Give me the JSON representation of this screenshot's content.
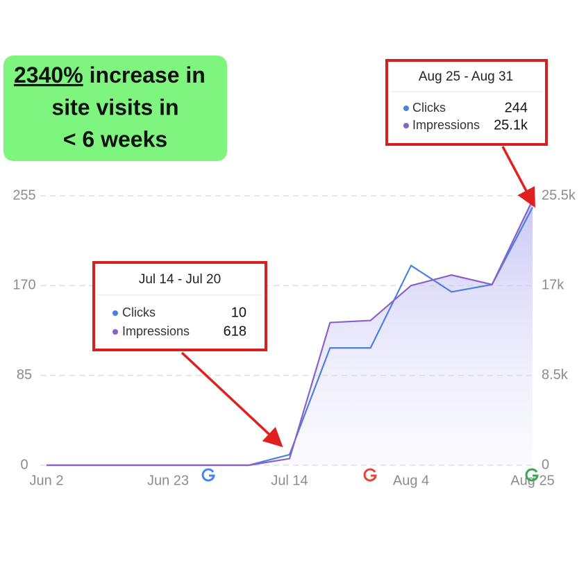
{
  "chart_data": {
    "type": "line",
    "banner": {
      "highlight": "2340%",
      "lines": [
        "increase in",
        "site visits in",
        "< 6 weeks"
      ]
    },
    "callouts": [
      {
        "title": "Jul 14 - Jul 20",
        "items": [
          {
            "name": "Clicks",
            "value": "10"
          },
          {
            "name": "Impressions",
            "value": "618"
          }
        ]
      },
      {
        "title": "Aug 25 - Aug 31",
        "items": [
          {
            "name": "Clicks",
            "value": "244"
          },
          {
            "name": "Impressions",
            "value": "25.1k"
          }
        ]
      }
    ],
    "categories": [
      "Jun 2",
      null,
      null,
      "Jun 23",
      null,
      null,
      "Jul 14",
      null,
      null,
      "Aug 4",
      null,
      null,
      "Aug 25"
    ],
    "series": [
      {
        "name": "Clicks",
        "color": "#4a80de",
        "values": [
          0,
          0,
          0,
          0,
          0,
          0,
          10,
          111,
          111,
          189,
          164,
          171,
          244
        ]
      },
      {
        "name": "Impressions",
        "color": "#8a62c6",
        "axis": "y2",
        "values": [
          0,
          0,
          0,
          0,
          0,
          0,
          618,
          13500,
          13700,
          17000,
          18000,
          17100,
          25100
        ]
      }
    ],
    "ylim": [
      0,
      255
    ],
    "yticks": [
      0,
      85,
      170,
      255
    ],
    "y2lim": [
      0,
      25500
    ],
    "y2ticks": [
      0,
      {
        "value": 8500,
        "label": "8.5k"
      },
      {
        "value": 17000,
        "label": "17k"
      },
      {
        "value": 25500,
        "label": "25.5k"
      }
    ],
    "grid": true
  }
}
